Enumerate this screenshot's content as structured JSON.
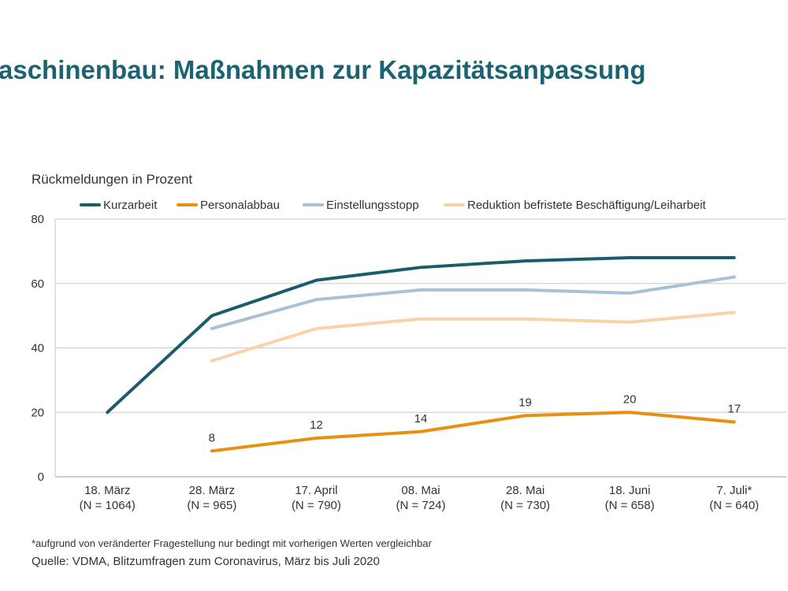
{
  "title": "aschinenbau: Maßnahmen zur Kapazitätsanpassung",
  "footnote": "*aufgrund von veränderter Fragestellung nur bedingt mit vorherigen Werten vergleichbar",
  "source": "Quelle: VDMA, Blitzumfragen zum Coronavirus, März bis Juli 2020",
  "chart_data": {
    "type": "line",
    "title": "",
    "ylabel": "Rückmeldungen in Prozent",
    "xlabel": "",
    "ylim": [
      0,
      80
    ],
    "yticks": [
      0,
      20,
      40,
      60,
      80
    ],
    "grid": true,
    "legend_position": "top",
    "categories": [
      [
        "18. März",
        "(N = 1064)"
      ],
      [
        "28. März",
        "(N = 965)"
      ],
      [
        "17. April",
        "(N = 790)"
      ],
      [
        "08. Mai",
        "(N = 724)"
      ],
      [
        "28. Mai",
        "(N = 730)"
      ],
      [
        "18. Juni",
        "(N = 658)"
      ],
      [
        "7. Juli*",
        "(N = 640)"
      ]
    ],
    "series": [
      {
        "name": "Kurzarbeit",
        "color": "#1b5c6b",
        "values": [
          20,
          50,
          61,
          65,
          67,
          68,
          68
        ],
        "labels": false
      },
      {
        "name": "Personalabbau",
        "color": "#e8900f",
        "values": [
          null,
          8,
          12,
          14,
          19,
          20,
          17
        ],
        "labels": true
      },
      {
        "name": "Einstellungsstopp",
        "color": "#a6c3d6",
        "values": [
          null,
          46,
          55,
          58,
          58,
          57,
          62
        ],
        "labels": false
      },
      {
        "name": "Reduktion befristete Beschäftigung/Leiharbeit",
        "color": "#f9d2a8",
        "values": [
          null,
          36,
          46,
          49,
          49,
          48,
          51
        ],
        "labels": false
      }
    ]
  }
}
